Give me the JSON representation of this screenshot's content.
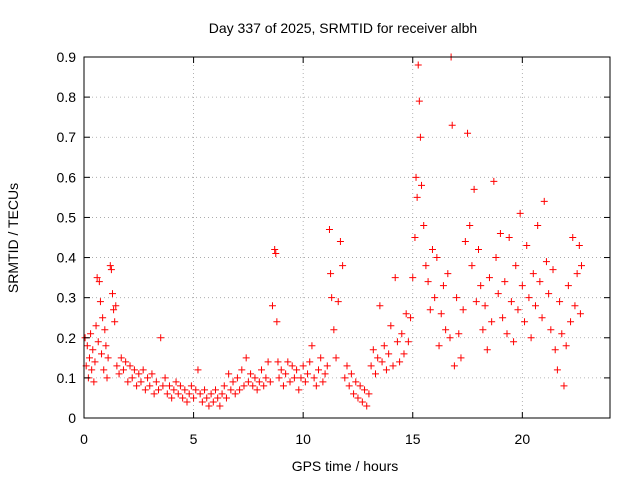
{
  "chart_data": {
    "type": "scatter",
    "title": "Day 337 of 2025, SRMTID for receiver albh",
    "xlabel": "GPS time / hours",
    "ylabel": "SRMTID / TECUs",
    "xlim": [
      0,
      24
    ],
    "ylim": [
      0,
      0.9
    ],
    "xticks": [
      0,
      5,
      10,
      15,
      20
    ],
    "xtick_labels": [
      "0",
      "5",
      "10",
      "15",
      "20"
    ],
    "yticks": [
      0,
      0.1,
      0.2,
      0.3,
      0.4,
      0.5,
      0.6,
      0.7,
      0.8,
      0.9
    ],
    "ytick_labels": [
      "0",
      "0.1",
      "0.2",
      "0.3",
      "0.4",
      "0.5",
      "0.6",
      "0.7",
      "0.8",
      "0.9"
    ],
    "grid": true,
    "marker": "+",
    "color": "#ff0000",
    "points": [
      [
        0.05,
        0.2
      ],
      [
        0.1,
        0.13
      ],
      [
        0.15,
        0.18
      ],
      [
        0.2,
        0.1
      ],
      [
        0.25,
        0.15
      ],
      [
        0.3,
        0.21
      ],
      [
        0.35,
        0.12
      ],
      [
        0.4,
        0.17
      ],
      [
        0.45,
        0.09
      ],
      [
        0.5,
        0.14
      ],
      [
        0.55,
        0.23
      ],
      [
        0.6,
        0.35
      ],
      [
        0.65,
        0.19
      ],
      [
        0.7,
        0.34
      ],
      [
        0.75,
        0.29
      ],
      [
        0.8,
        0.16
      ],
      [
        0.85,
        0.25
      ],
      [
        0.9,
        0.12
      ],
      [
        0.95,
        0.22
      ],
      [
        1.0,
        0.18
      ],
      [
        1.05,
        0.1
      ],
      [
        1.1,
        0.15
      ],
      [
        1.2,
        0.38
      ],
      [
        1.25,
        0.37
      ],
      [
        1.3,
        0.31
      ],
      [
        1.35,
        0.27
      ],
      [
        1.4,
        0.24
      ],
      [
        1.45,
        0.28
      ],
      [
        1.5,
        0.13
      ],
      [
        1.6,
        0.11
      ],
      [
        1.7,
        0.15
      ],
      [
        1.8,
        0.12
      ],
      [
        1.9,
        0.14
      ],
      [
        2.0,
        0.09
      ],
      [
        2.1,
        0.13
      ],
      [
        2.2,
        0.1
      ],
      [
        2.3,
        0.12
      ],
      [
        2.4,
        0.08
      ],
      [
        2.5,
        0.11
      ],
      [
        2.6,
        0.09
      ],
      [
        2.7,
        0.12
      ],
      [
        2.8,
        0.07
      ],
      [
        2.9,
        0.1
      ],
      [
        3.0,
        0.08
      ],
      [
        3.1,
        0.11
      ],
      [
        3.2,
        0.06
      ],
      [
        3.3,
        0.09
      ],
      [
        3.4,
        0.07
      ],
      [
        3.5,
        0.2
      ],
      [
        3.6,
        0.08
      ],
      [
        3.7,
        0.1
      ],
      [
        3.8,
        0.06
      ],
      [
        3.9,
        0.08
      ],
      [
        4.0,
        0.05
      ],
      [
        4.1,
        0.07
      ],
      [
        4.2,
        0.09
      ],
      [
        4.3,
        0.06
      ],
      [
        4.4,
        0.08
      ],
      [
        4.5,
        0.05
      ],
      [
        4.6,
        0.07
      ],
      [
        4.7,
        0.04
      ],
      [
        4.8,
        0.06
      ],
      [
        4.9,
        0.08
      ],
      [
        5.0,
        0.05
      ],
      [
        5.1,
        0.07
      ],
      [
        5.2,
        0.12
      ],
      [
        5.3,
        0.06
      ],
      [
        5.4,
        0.04
      ],
      [
        5.5,
        0.07
      ],
      [
        5.6,
        0.05
      ],
      [
        5.7,
        0.03
      ],
      [
        5.8,
        0.06
      ],
      [
        5.9,
        0.04
      ],
      [
        6.0,
        0.07
      ],
      [
        6.1,
        0.05
      ],
      [
        6.2,
        0.03
      ],
      [
        6.3,
        0.06
      ],
      [
        6.4,
        0.08
      ],
      [
        6.5,
        0.05
      ],
      [
        6.6,
        0.11
      ],
      [
        6.7,
        0.07
      ],
      [
        6.8,
        0.09
      ],
      [
        6.9,
        0.06
      ],
      [
        7.0,
        0.1
      ],
      [
        7.1,
        0.07
      ],
      [
        7.2,
        0.12
      ],
      [
        7.3,
        0.08
      ],
      [
        7.4,
        0.15
      ],
      [
        7.5,
        0.09
      ],
      [
        7.6,
        0.11
      ],
      [
        7.7,
        0.08
      ],
      [
        7.8,
        0.1
      ],
      [
        7.9,
        0.07
      ],
      [
        8.0,
        0.09
      ],
      [
        8.1,
        0.12
      ],
      [
        8.2,
        0.08
      ],
      [
        8.3,
        0.1
      ],
      [
        8.4,
        0.14
      ],
      [
        8.5,
        0.09
      ],
      [
        8.6,
        0.28
      ],
      [
        8.7,
        0.42
      ],
      [
        8.75,
        0.41
      ],
      [
        8.8,
        0.24
      ],
      [
        8.85,
        0.14
      ],
      [
        8.9,
        0.1
      ],
      [
        9.0,
        0.12
      ],
      [
        9.1,
        0.08
      ],
      [
        9.2,
        0.11
      ],
      [
        9.3,
        0.14
      ],
      [
        9.4,
        0.09
      ],
      [
        9.5,
        0.13
      ],
      [
        9.6,
        0.1
      ],
      [
        9.7,
        0.12
      ],
      [
        9.8,
        0.07
      ],
      [
        9.9,
        0.1
      ],
      [
        10.0,
        0.13
      ],
      [
        10.1,
        0.09
      ],
      [
        10.2,
        0.11
      ],
      [
        10.3,
        0.14
      ],
      [
        10.4,
        0.18
      ],
      [
        10.5,
        0.1
      ],
      [
        10.6,
        0.08
      ],
      [
        10.7,
        0.12
      ],
      [
        10.8,
        0.15
      ],
      [
        10.9,
        0.09
      ],
      [
        11.0,
        0.11
      ],
      [
        11.1,
        0.13
      ],
      [
        11.2,
        0.47
      ],
      [
        11.25,
        0.36
      ],
      [
        11.3,
        0.3
      ],
      [
        11.4,
        0.22
      ],
      [
        11.5,
        0.15
      ],
      [
        11.6,
        0.29
      ],
      [
        11.7,
        0.44
      ],
      [
        11.8,
        0.38
      ],
      [
        11.9,
        0.1
      ],
      [
        12.0,
        0.13
      ],
      [
        12.1,
        0.08
      ],
      [
        12.2,
        0.11
      ],
      [
        12.3,
        0.06
      ],
      [
        12.4,
        0.09
      ],
      [
        12.5,
        0.05
      ],
      [
        12.6,
        0.08
      ],
      [
        12.7,
        0.04
      ],
      [
        12.8,
        0.07
      ],
      [
        12.9,
        0.03
      ],
      [
        13.0,
        0.06
      ],
      [
        13.1,
        0.13
      ],
      [
        13.2,
        0.17
      ],
      [
        13.3,
        0.11
      ],
      [
        13.4,
        0.15
      ],
      [
        13.5,
        0.28
      ],
      [
        13.6,
        0.14
      ],
      [
        13.7,
        0.18
      ],
      [
        13.8,
        0.12
      ],
      [
        13.9,
        0.16
      ],
      [
        14.0,
        0.23
      ],
      [
        14.1,
        0.13
      ],
      [
        14.2,
        0.35
      ],
      [
        14.3,
        0.19
      ],
      [
        14.4,
        0.14
      ],
      [
        14.5,
        0.21
      ],
      [
        14.6,
        0.16
      ],
      [
        14.7,
        0.26
      ],
      [
        14.8,
        0.19
      ],
      [
        14.9,
        0.25
      ],
      [
        15.0,
        0.35
      ],
      [
        15.1,
        0.45
      ],
      [
        15.15,
        0.6
      ],
      [
        15.2,
        0.55
      ],
      [
        15.25,
        0.88
      ],
      [
        15.3,
        0.79
      ],
      [
        15.35,
        0.7
      ],
      [
        15.4,
        0.58
      ],
      [
        15.5,
        0.48
      ],
      [
        15.6,
        0.38
      ],
      [
        15.7,
        0.34
      ],
      [
        15.8,
        0.27
      ],
      [
        15.9,
        0.42
      ],
      [
        16.0,
        0.3
      ],
      [
        16.1,
        0.4
      ],
      [
        16.2,
        0.18
      ],
      [
        16.3,
        0.26
      ],
      [
        16.4,
        0.33
      ],
      [
        16.5,
        0.22
      ],
      [
        16.6,
        0.36
      ],
      [
        16.7,
        0.2
      ],
      [
        16.75,
        0.9
      ],
      [
        16.8,
        0.73
      ],
      [
        16.9,
        0.13
      ],
      [
        17.0,
        0.3
      ],
      [
        17.1,
        0.21
      ],
      [
        17.2,
        0.15
      ],
      [
        17.3,
        0.27
      ],
      [
        17.4,
        0.44
      ],
      [
        17.5,
        0.71
      ],
      [
        17.6,
        0.48
      ],
      [
        17.7,
        0.38
      ],
      [
        17.8,
        0.57
      ],
      [
        17.9,
        0.29
      ],
      [
        18.0,
        0.42
      ],
      [
        18.1,
        0.33
      ],
      [
        18.2,
        0.22
      ],
      [
        18.3,
        0.28
      ],
      [
        18.4,
        0.17
      ],
      [
        18.5,
        0.35
      ],
      [
        18.6,
        0.24
      ],
      [
        18.7,
        0.59
      ],
      [
        18.8,
        0.4
      ],
      [
        18.9,
        0.31
      ],
      [
        19.0,
        0.46
      ],
      [
        19.1,
        0.25
      ],
      [
        19.2,
        0.34
      ],
      [
        19.3,
        0.21
      ],
      [
        19.4,
        0.45
      ],
      [
        19.5,
        0.29
      ],
      [
        19.6,
        0.19
      ],
      [
        19.7,
        0.38
      ],
      [
        19.8,
        0.27
      ],
      [
        19.9,
        0.51
      ],
      [
        20.0,
        0.33
      ],
      [
        20.1,
        0.24
      ],
      [
        20.2,
        0.43
      ],
      [
        20.3,
        0.3
      ],
      [
        20.4,
        0.2
      ],
      [
        20.5,
        0.36
      ],
      [
        20.6,
        0.28
      ],
      [
        20.7,
        0.48
      ],
      [
        20.8,
        0.34
      ],
      [
        20.9,
        0.25
      ],
      [
        21.0,
        0.54
      ],
      [
        21.1,
        0.39
      ],
      [
        21.2,
        0.31
      ],
      [
        21.3,
        0.22
      ],
      [
        21.4,
        0.37
      ],
      [
        21.5,
        0.17
      ],
      [
        21.6,
        0.12
      ],
      [
        21.7,
        0.29
      ],
      [
        21.8,
        0.21
      ],
      [
        21.9,
        0.08
      ],
      [
        22.0,
        0.18
      ],
      [
        22.1,
        0.33
      ],
      [
        22.2,
        0.24
      ],
      [
        22.3,
        0.45
      ],
      [
        22.4,
        0.28
      ],
      [
        22.5,
        0.36
      ],
      [
        22.6,
        0.43
      ],
      [
        22.65,
        0.26
      ],
      [
        22.7,
        0.38
      ]
    ]
  }
}
